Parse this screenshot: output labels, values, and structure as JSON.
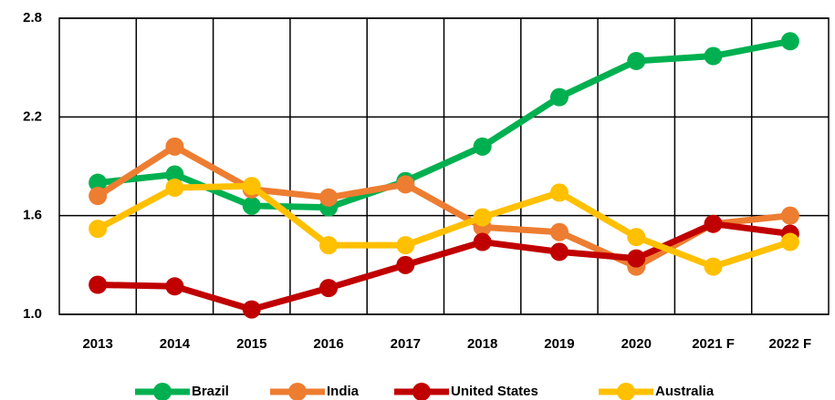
{
  "chart_data": {
    "type": "line",
    "categories": [
      "2013",
      "2014",
      "2015",
      "2016",
      "2017",
      "2018",
      "2019",
      "2020",
      "2021 F",
      "2022 F"
    ],
    "series": [
      {
        "name": "Brazil",
        "color": "#00b050",
        "values": [
          1.8,
          1.85,
          1.66,
          1.65,
          1.81,
          2.02,
          2.32,
          2.54,
          2.57,
          2.66
        ]
      },
      {
        "name": "India",
        "color": "#ed7d31",
        "values": [
          1.72,
          2.02,
          1.76,
          1.71,
          1.79,
          1.53,
          1.5,
          1.29,
          1.55,
          1.6
        ]
      },
      {
        "name": "United States",
        "color": "#c00000",
        "values": [
          1.18,
          1.17,
          1.03,
          1.16,
          1.3,
          1.44,
          1.38,
          1.34,
          1.55,
          1.49
        ]
      },
      {
        "name": "Australia",
        "color": "#ffc000",
        "values": [
          1.52,
          1.77,
          1.78,
          1.42,
          1.42,
          1.59,
          1.74,
          1.47,
          1.29,
          1.44
        ]
      }
    ],
    "ylim": [
      1.0,
      2.8
    ],
    "yticks": [
      {
        "value": 1.0,
        "label": "1.0"
      },
      1.6,
      2.2,
      2.8
    ],
    "grid": true,
    "legend": "bottom"
  }
}
